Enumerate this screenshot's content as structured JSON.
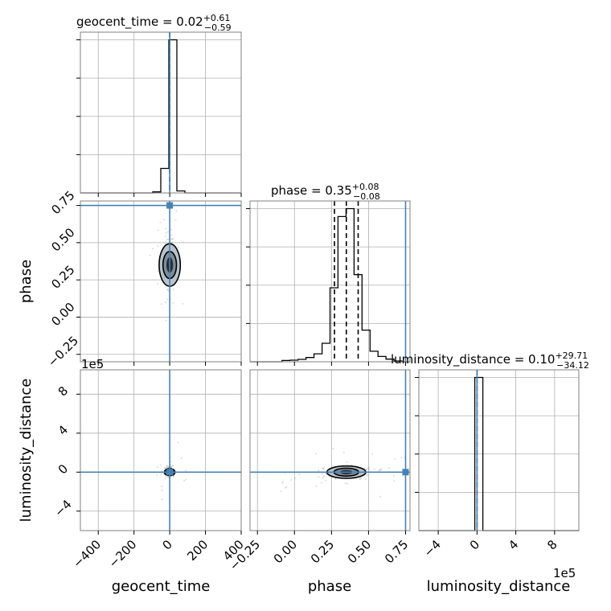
{
  "colors": {
    "truth": "#4682b4",
    "line": "#000000",
    "grid": "#b0b0b0",
    "samples": "#999999",
    "contour_fill": "#7f8c99"
  },
  "chart_data": {
    "type": "corner",
    "parameters": [
      "geocent_time",
      "phase",
      "luminosity_distance"
    ],
    "truths": {
      "geocent_time": 0,
      "phase": 0.75,
      "luminosity_distance": 0
    },
    "titles": [
      {
        "param": "geocent_time",
        "text": "geocent_time = 0.02",
        "plus": "+0.61",
        "minus": "−0.59"
      },
      {
        "param": "phase",
        "text": "phase = 0.35",
        "plus": "+0.08",
        "minus": "−0.08"
      },
      {
        "param": "luminosity_distance",
        "text": "luminosity_distance = 0.10",
        "plus": "+29.71",
        "minus": "−34.12"
      }
    ],
    "axis_labels": {
      "x": [
        "geocent_time",
        "phase",
        "luminosity_distance"
      ],
      "y": [
        "phase",
        "luminosity_distance"
      ]
    },
    "ranges": {
      "geocent_time": [
        -500,
        400
      ],
      "phase": [
        -0.3,
        0.78
      ],
      "luminosity_distance": [
        -600000,
        1050000
      ]
    },
    "ticks": {
      "geocent_time": [
        "−400",
        "−200",
        "0",
        "200",
        "400"
      ],
      "phase": [
        "−0.25",
        "0.00",
        "0.25",
        "0.50",
        "0.75"
      ],
      "luminosity_distance": [
        "−4",
        "0",
        "4",
        "8"
      ]
    },
    "offset_text": "1e5",
    "histograms": {
      "geocent_time": {
        "edges": [
          -500,
          -455,
          -410,
          -365,
          -320,
          -275,
          -230,
          -185,
          -140,
          -95,
          -50,
          -5,
          40,
          85,
          130,
          175,
          220,
          265,
          310,
          355,
          400
        ],
        "counts": [
          0,
          0,
          0,
          0,
          0,
          0,
          0,
          0,
          0,
          0.5,
          12,
          75,
          1,
          0,
          0,
          0,
          0,
          0,
          0,
          0
        ]
      },
      "phase": {
        "edges": [
          -0.3,
          -0.246,
          -0.192,
          -0.138,
          -0.084,
          -0.03,
          0.024,
          0.078,
          0.132,
          0.186,
          0.24,
          0.294,
          0.348,
          0.402,
          0.456,
          0.51,
          0.564,
          0.618,
          0.672,
          0.726,
          0.78
        ],
        "counts": [
          0,
          0,
          0,
          0,
          0.5,
          0.6,
          0.9,
          1.6,
          3,
          7,
          28,
          55,
          58,
          33,
          12,
          4,
          2,
          1,
          0.3,
          0
        ]
      },
      "luminosity_distance": {
        "edges": [
          -600000,
          -517500,
          -435000,
          -352500,
          -270000,
          -187500,
          -105000,
          -22500,
          60000,
          142500,
          225000,
          307500,
          390000,
          472500,
          555000,
          637500,
          720000,
          802500,
          885000,
          967500,
          1050000
        ],
        "counts": [
          0,
          0,
          0,
          0,
          0,
          0,
          0,
          100,
          0,
          0,
          0,
          0,
          0,
          0,
          0,
          0,
          0,
          0,
          0,
          0
        ]
      }
    },
    "quantiles": {
      "geocent_time": {
        "median": 0.02
      },
      "phase": {
        "lower": 0.27,
        "median": 0.35,
        "upper": 0.43
      },
      "luminosity_distance": {
        "median": 0.1
      }
    }
  }
}
